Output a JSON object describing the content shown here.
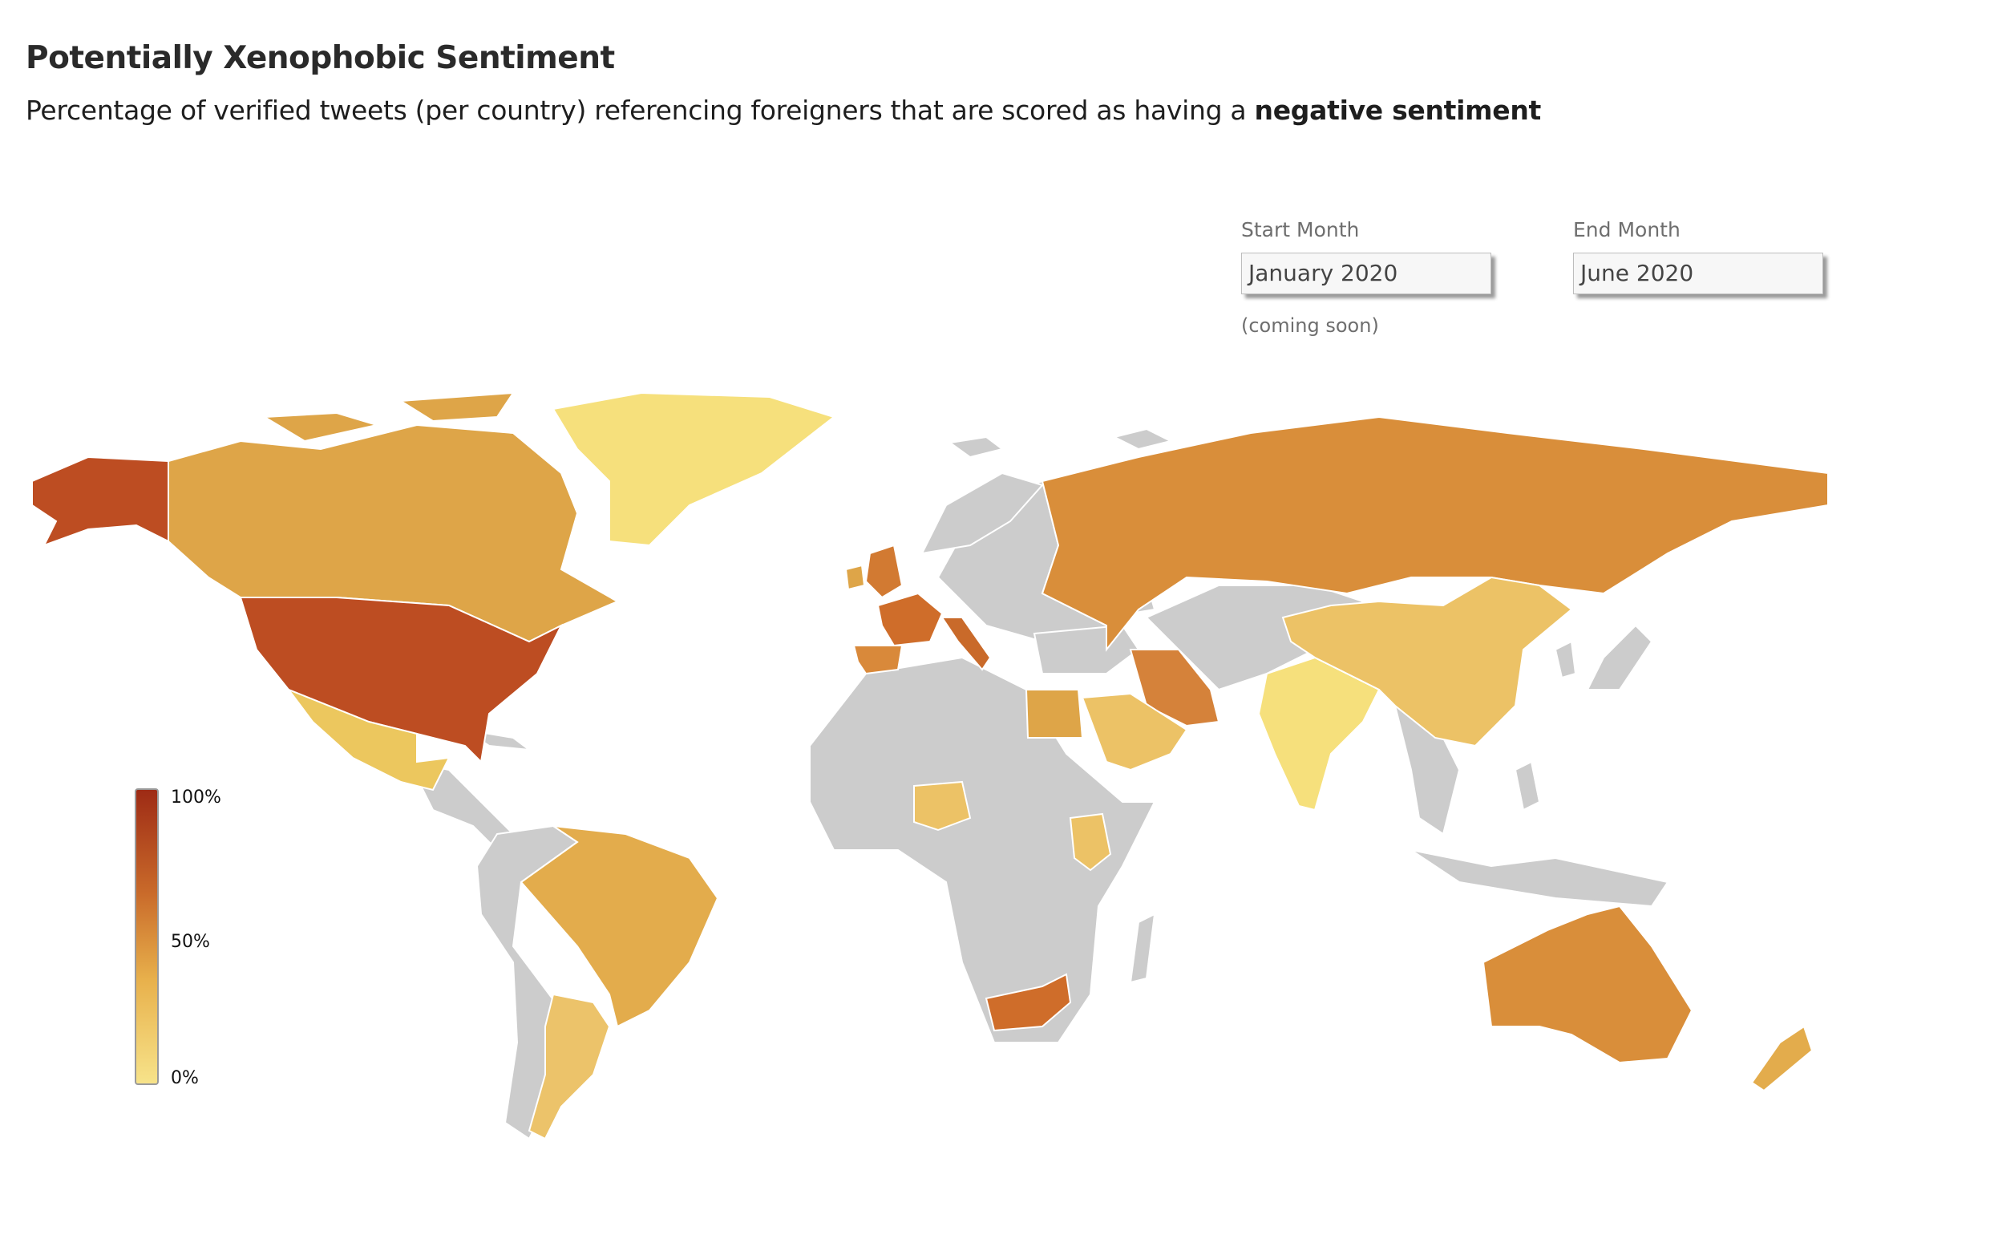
{
  "header": {
    "title": "Potentially Xenophobic Sentiment",
    "subtitle_prefix": "Percentage of verified tweets (per country) referencing foreigners that are scored as having a ",
    "subtitle_emphasis": "negative sentiment"
  },
  "controls": {
    "start_label": "Start Month",
    "start_value": "January 2020",
    "end_label": "End Month",
    "end_value": "June 2020",
    "note": "(coming soon)"
  },
  "legend": {
    "ticks": [
      "100%",
      "50%",
      "0%"
    ],
    "colors": {
      "high": "#9e2b15",
      "mid": "#d98e3a",
      "low": "#f7e38a"
    }
  },
  "map": {
    "no_data_color": "#cccccc",
    "regions": [
      {
        "name": "Alaska",
        "value": 80
      },
      {
        "name": "Canada",
        "value": 45
      },
      {
        "name": "Greenland",
        "value": 5
      },
      {
        "name": "United States",
        "value": 80
      },
      {
        "name": "Mexico",
        "value": 22
      },
      {
        "name": "Brazil",
        "value": 38
      },
      {
        "name": "Argentina",
        "value": 25
      },
      {
        "name": "United Kingdom",
        "value": 65
      },
      {
        "name": "Ireland",
        "value": 45
      },
      {
        "name": "France",
        "value": 65
      },
      {
        "name": "Spain",
        "value": 55
      },
      {
        "name": "Italy",
        "value": 70
      },
      {
        "name": "Russia",
        "value": 55
      },
      {
        "name": "Iran",
        "value": 58
      },
      {
        "name": "Egypt",
        "value": 40
      },
      {
        "name": "Saudi Arabia",
        "value": 25
      },
      {
        "name": "India",
        "value": 10
      },
      {
        "name": "China",
        "value": 25
      },
      {
        "name": "Nigeria",
        "value": 25
      },
      {
        "name": "Kenya",
        "value": 22
      },
      {
        "name": "South Africa",
        "value": 68
      },
      {
        "name": "Australia",
        "value": 52
      },
      {
        "name": "New Zealand",
        "value": 35
      }
    ]
  }
}
